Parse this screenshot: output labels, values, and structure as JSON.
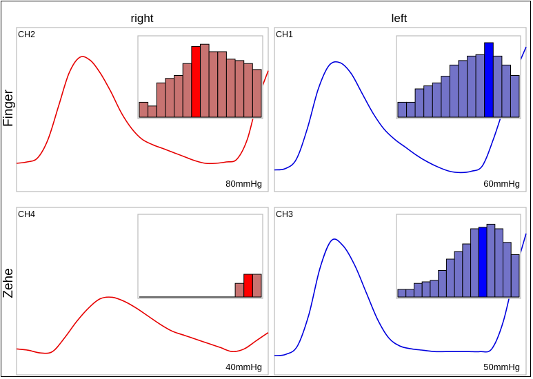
{
  "columns": [
    "right",
    "left"
  ],
  "rows": [
    "Finger",
    "Zehe"
  ],
  "colors": {
    "right_line": "#e60000",
    "right_bar": "#c87371",
    "right_bar_highlight": "#ff0000",
    "left_line": "#0000dd",
    "left_bar": "#7373c8",
    "left_bar_highlight": "#0000ff",
    "panel_border": "#bbbbbb"
  },
  "chart_data": [
    {
      "type": "line",
      "channel": "CH2",
      "pressure_label": "80mmHg",
      "side": "right",
      "row": "Finger",
      "line": [
        0.12,
        0.13,
        0.16,
        0.3,
        0.55,
        0.8,
        0.92,
        0.9,
        0.8,
        0.66,
        0.5,
        0.38,
        0.3,
        0.26,
        0.23,
        0.2,
        0.17,
        0.14,
        0.12,
        0.12,
        0.13,
        0.15,
        0.3,
        0.6,
        0.82
      ],
      "histogram": {
        "values": [
          0.2,
          0.15,
          0.46,
          0.52,
          0.56,
          0.72,
          0.95,
          0.98,
          0.88,
          0.88,
          0.78,
          0.76,
          0.72,
          0.64
        ],
        "highlight_index": 6
      }
    },
    {
      "type": "line",
      "channel": "CH1",
      "pressure_label": "60mmHg",
      "side": "left",
      "row": "Finger",
      "line": [
        0.07,
        0.08,
        0.15,
        0.38,
        0.68,
        0.86,
        0.88,
        0.8,
        0.65,
        0.5,
        0.38,
        0.3,
        0.24,
        0.18,
        0.13,
        0.09,
        0.06,
        0.05,
        0.06,
        0.1,
        0.3,
        0.55,
        0.8,
        1.0
      ],
      "histogram": {
        "values": [
          0.2,
          0.2,
          0.38,
          0.42,
          0.46,
          0.55,
          0.7,
          0.76,
          0.82,
          0.84,
          1.0,
          0.82,
          0.7,
          0.56
        ],
        "highlight_index": 10
      }
    },
    {
      "type": "line",
      "channel": "CH4",
      "pressure_label": "40mmHg",
      "side": "right",
      "row": "Zehe",
      "line": [
        0.1,
        0.09,
        0.07,
        0.08,
        0.18,
        0.3,
        0.4,
        0.47,
        0.48,
        0.45,
        0.4,
        0.34,
        0.28,
        0.23,
        0.2,
        0.17,
        0.14,
        0.11,
        0.08,
        0.1,
        0.16,
        0.22
      ],
      "histogram": {
        "values": [
          0,
          0,
          0,
          0,
          0,
          0,
          0,
          0,
          0,
          0,
          0,
          0.18,
          0.3,
          0.3
        ],
        "highlight_index": 12
      }
    },
    {
      "type": "line",
      "channel": "CH3",
      "pressure_label": "50mmHg",
      "side": "left",
      "row": "Zehe",
      "line": [
        0.05,
        0.06,
        0.12,
        0.35,
        0.7,
        0.9,
        0.86,
        0.72,
        0.52,
        0.32,
        0.18,
        0.12,
        0.1,
        0.09,
        0.08,
        0.08,
        0.08,
        0.08,
        0.08,
        0.1,
        0.3,
        0.65,
        0.95
      ],
      "histogram": {
        "values": [
          0.1,
          0.1,
          0.18,
          0.2,
          0.22,
          0.35,
          0.5,
          0.6,
          0.7,
          0.9,
          0.92,
          0.96,
          0.9,
          0.72,
          0.56
        ],
        "highlight_index": 10
      }
    }
  ]
}
